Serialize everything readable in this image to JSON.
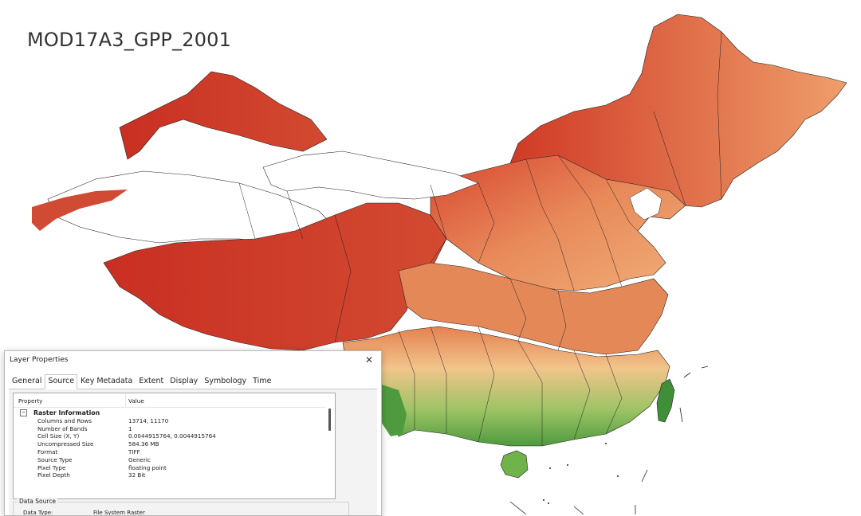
{
  "map": {
    "title": "MOD17A3_GPP_2001",
    "colors": {
      "dry": "#c92f22",
      "mid": "#e0704b",
      "tan": "#efa06d",
      "light": "#f3c48c",
      "green": "#6fb34a",
      "darkgreen": "#3e8f38",
      "border": "#222222"
    }
  },
  "dialog": {
    "title": "Layer Properties",
    "close_icon": "close-icon",
    "tabs": [
      "General",
      "Source",
      "Key Metadata",
      "Extent",
      "Display",
      "Symbology",
      "Time"
    ],
    "active_tab": "Source",
    "table": {
      "col_property": "Property",
      "col_value": "Value",
      "section": "Raster Information",
      "expander_icon": "collapse-icon",
      "rows": [
        {
          "k": "Columns and Rows",
          "v": "13714, 11170"
        },
        {
          "k": "Number of Bands",
          "v": "1"
        },
        {
          "k": "Cell Size (X, Y)",
          "v": "0.0044915764, 0.0044915764"
        },
        {
          "k": "Uncompressed Size",
          "v": "584.36 MB"
        },
        {
          "k": "Format",
          "v": "TIFF"
        },
        {
          "k": "Source Type",
          "v": "Generic"
        },
        {
          "k": "Pixel Type",
          "v": "floating point"
        },
        {
          "k": "Pixel Depth",
          "v": "32 Bit"
        }
      ]
    },
    "data_source": {
      "legend": "Data Source",
      "label": "Data Type:",
      "value": "File System Raster"
    }
  }
}
